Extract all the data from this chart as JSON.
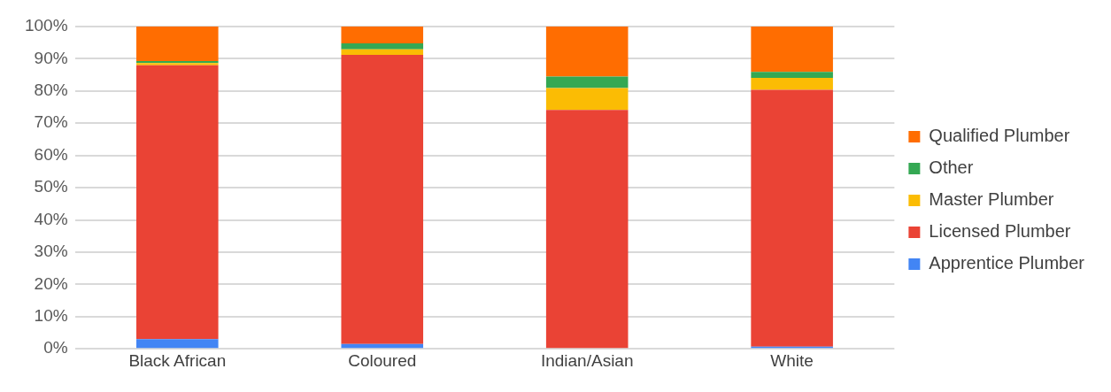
{
  "chart_data": {
    "type": "bar",
    "stacked": true,
    "categories": [
      "Black African",
      "Coloured",
      "Indian/Asian",
      "White"
    ],
    "series": [
      {
        "name": "Apprentice Plumber",
        "color": "#4285f4",
        "values": [
          3,
          1.5,
          0,
          0.7
        ]
      },
      {
        "name": "Licensed Plumber",
        "color": "#ea4335",
        "values": [
          85,
          89.7,
          74.1,
          79.7
        ]
      },
      {
        "name": "Master Plumber",
        "color": "#fbbc04",
        "values": [
          0.7,
          1.7,
          6.8,
          3.7
        ]
      },
      {
        "name": "Other",
        "color": "#34a853",
        "values": [
          0.6,
          1.9,
          3.6,
          1.8
        ]
      },
      {
        "name": "Qualified Plumber",
        "color": "#ff6d01",
        "values": [
          10.7,
          5.2,
          15.5,
          14.1
        ]
      }
    ],
    "ylim": [
      0,
      100
    ],
    "yticks": [
      {
        "value": 0,
        "label": "0%"
      },
      {
        "value": 10,
        "label": "10%"
      },
      {
        "value": 20,
        "label": "20%"
      },
      {
        "value": 30,
        "label": "30%"
      },
      {
        "value": 40,
        "label": "40%"
      },
      {
        "value": 50,
        "label": "50%"
      },
      {
        "value": 60,
        "label": "60%"
      },
      {
        "value": 70,
        "label": "70%"
      },
      {
        "value": 80,
        "label": "80%"
      },
      {
        "value": 90,
        "label": "90%"
      },
      {
        "value": 100,
        "label": "100%"
      }
    ],
    "grid": "y",
    "legend": "right"
  }
}
